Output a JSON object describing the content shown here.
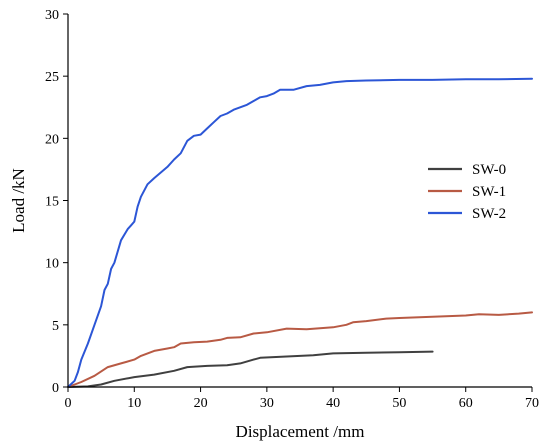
{
  "chart_data": {
    "type": "line",
    "title": "",
    "xlabel": "Displacement /mm",
    "ylabel": "Load /kN",
    "xlim": [
      0,
      70
    ],
    "ylim": [
      0,
      30
    ],
    "xticks": [
      0,
      10,
      20,
      30,
      40,
      50,
      60,
      70
    ],
    "yticks": [
      0,
      5,
      10,
      15,
      20,
      25,
      30
    ],
    "grid": false,
    "legend_position": "right-middle",
    "series": [
      {
        "name": "SW-0",
        "color": "#404040",
        "points": [
          [
            0,
            0
          ],
          [
            3,
            0.05
          ],
          [
            5,
            0.2
          ],
          [
            7,
            0.5
          ],
          [
            10,
            0.8
          ],
          [
            13,
            1.0
          ],
          [
            16,
            1.3
          ],
          [
            18,
            1.6
          ],
          [
            21,
            1.7
          ],
          [
            24,
            1.75
          ],
          [
            26,
            1.9
          ],
          [
            28,
            2.2
          ],
          [
            29,
            2.35
          ],
          [
            33,
            2.45
          ],
          [
            37,
            2.55
          ],
          [
            40,
            2.7
          ],
          [
            45,
            2.75
          ],
          [
            50,
            2.8
          ],
          [
            55,
            2.85
          ]
        ]
      },
      {
        "name": "SW-1",
        "color": "#b85a44",
        "points": [
          [
            0,
            0
          ],
          [
            2,
            0.4
          ],
          [
            4,
            0.9
          ],
          [
            6,
            1.6
          ],
          [
            8,
            1.9
          ],
          [
            10,
            2.2
          ],
          [
            11,
            2.5
          ],
          [
            13,
            2.9
          ],
          [
            15,
            3.1
          ],
          [
            16,
            3.2
          ],
          [
            17,
            3.5
          ],
          [
            19,
            3.6
          ],
          [
            21,
            3.65
          ],
          [
            23,
            3.8
          ],
          [
            24,
            3.95
          ],
          [
            26,
            4.0
          ],
          [
            28,
            4.3
          ],
          [
            30,
            4.4
          ],
          [
            33,
            4.7
          ],
          [
            36,
            4.65
          ],
          [
            40,
            4.8
          ],
          [
            42,
            5.0
          ],
          [
            43,
            5.2
          ],
          [
            45,
            5.3
          ],
          [
            48,
            5.5
          ],
          [
            50,
            5.55
          ],
          [
            55,
            5.65
          ],
          [
            60,
            5.75
          ],
          [
            62,
            5.85
          ],
          [
            65,
            5.8
          ],
          [
            68,
            5.9
          ],
          [
            70,
            6.0
          ]
        ]
      },
      {
        "name": "SW-2",
        "color": "#2c56d6",
        "points": [
          [
            0,
            0
          ],
          [
            1,
            0.5
          ],
          [
            1.5,
            1.2
          ],
          [
            2,
            2.2
          ],
          [
            3,
            3.5
          ],
          [
            4,
            5.0
          ],
          [
            5,
            6.5
          ],
          [
            5.5,
            7.8
          ],
          [
            6,
            8.3
          ],
          [
            6.5,
            9.5
          ],
          [
            7,
            10.0
          ],
          [
            8,
            11.8
          ],
          [
            9,
            12.7
          ],
          [
            9.5,
            13.0
          ],
          [
            10,
            13.3
          ],
          [
            10.5,
            14.5
          ],
          [
            11,
            15.3
          ],
          [
            12,
            16.3
          ],
          [
            13,
            16.8
          ],
          [
            15,
            17.7
          ],
          [
            16,
            18.3
          ],
          [
            17,
            18.8
          ],
          [
            18,
            19.8
          ],
          [
            19,
            20.2
          ],
          [
            20,
            20.3
          ],
          [
            21,
            20.8
          ],
          [
            22,
            21.3
          ],
          [
            23,
            21.8
          ],
          [
            24,
            22.0
          ],
          [
            25,
            22.3
          ],
          [
            27,
            22.7
          ],
          [
            28,
            23.0
          ],
          [
            29,
            23.3
          ],
          [
            30,
            23.4
          ],
          [
            31,
            23.6
          ],
          [
            32,
            23.9
          ],
          [
            34,
            23.9
          ],
          [
            36,
            24.2
          ],
          [
            38,
            24.3
          ],
          [
            40,
            24.5
          ],
          [
            42,
            24.6
          ],
          [
            45,
            24.65
          ],
          [
            50,
            24.7
          ],
          [
            55,
            24.7
          ],
          [
            60,
            24.75
          ],
          [
            65,
            24.75
          ],
          [
            70,
            24.8
          ]
        ]
      }
    ]
  }
}
